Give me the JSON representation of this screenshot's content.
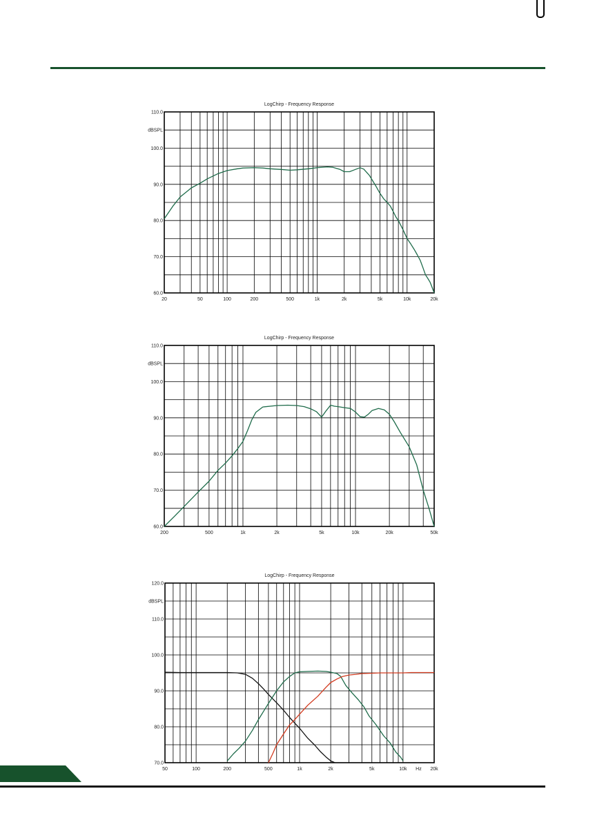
{
  "page": {
    "top_rule_color": "#17522c",
    "corner_tab_color": "#17522c"
  },
  "chart_data": [
    {
      "type": "line",
      "title": "LogChirp - Frequency Response",
      "ylabel": "dBSPL",
      "xscale": "log",
      "xlim": [
        20,
        20000
      ],
      "ylim": [
        60,
        110
      ],
      "grid": true,
      "xticks": [
        {
          "value": 20,
          "label": "20"
        },
        {
          "value": 50,
          "label": "50"
        },
        {
          "value": 100,
          "label": "100"
        },
        {
          "value": 200,
          "label": "200"
        },
        {
          "value": 500,
          "label": "500"
        },
        {
          "value": 1000,
          "label": "1k"
        },
        {
          "value": 2000,
          "label": "2k"
        },
        {
          "value": 5000,
          "label": "5k"
        },
        {
          "value": 10000,
          "label": "10k"
        },
        {
          "value": 20000,
          "label": "20k"
        }
      ],
      "yticks": [
        {
          "value": 60,
          "label": "60.0"
        },
        {
          "value": 70,
          "label": "70.0"
        },
        {
          "value": 80,
          "label": "80.0"
        },
        {
          "value": 90,
          "label": "90.0"
        },
        {
          "value": 100,
          "label": "100.0"
        },
        {
          "value": 110,
          "label": "110.0"
        }
      ],
      "series": [
        {
          "color": "#1e6b4a",
          "x": [
            20,
            25,
            30,
            40,
            50,
            60,
            70,
            80,
            100,
            130,
            150,
            200,
            250,
            300,
            400,
            500,
            600,
            800,
            1000,
            1300,
            1500,
            1800,
            2000,
            2300,
            2600,
            3000,
            3300,
            3800,
            4500,
            5000,
            5500,
            6000,
            6500,
            7000,
            7500,
            8000,
            9000,
            10000,
            11000,
            12000,
            13000,
            14000,
            15000,
            16000,
            17000,
            18000,
            19000,
            20000
          ],
          "y": [
            80.5,
            84,
            86.5,
            89,
            90.3,
            91.5,
            92.3,
            93,
            93.8,
            94.3,
            94.5,
            94.6,
            94.5,
            94.3,
            94.1,
            93.9,
            94,
            94.3,
            94.6,
            94.8,
            94.7,
            94.1,
            93.5,
            93.5,
            94,
            94.6,
            94.2,
            92.5,
            89.5,
            87.5,
            86,
            85,
            84,
            82.5,
            81,
            80,
            77.5,
            75,
            73.5,
            72,
            70.5,
            69,
            67,
            65,
            64,
            63,
            61.5,
            60
          ]
        }
      ]
    },
    {
      "type": "line",
      "title": "LogChirp - Frequency Response",
      "ylabel": "dBSPL",
      "xscale": "log",
      "xlim": [
        200,
        50000
      ],
      "ylim": [
        60,
        110
      ],
      "grid": true,
      "xticks": [
        {
          "value": 200,
          "label": "200"
        },
        {
          "value": 500,
          "label": "500"
        },
        {
          "value": 1000,
          "label": "1k"
        },
        {
          "value": 2000,
          "label": "2k"
        },
        {
          "value": 5000,
          "label": "5k"
        },
        {
          "value": 10000,
          "label": "10k"
        },
        {
          "value": 20000,
          "label": "20k"
        },
        {
          "value": 50000,
          "label": "50k"
        }
      ],
      "yticks": [
        {
          "value": 60,
          "label": "60.0"
        },
        {
          "value": 70,
          "label": "70.0"
        },
        {
          "value": 80,
          "label": "80.0"
        },
        {
          "value": 90,
          "label": "90.0"
        },
        {
          "value": 100,
          "label": "100.0"
        },
        {
          "value": 110,
          "label": "110.0"
        }
      ],
      "series": [
        {
          "color": "#1e6b4a",
          "x": [
            200,
            250,
            300,
            400,
            500,
            600,
            700,
            800,
            900,
            1000,
            1100,
            1200,
            1300,
            1500,
            2000,
            2500,
            3000,
            3500,
            4000,
            4500,
            5000,
            5500,
            6000,
            6500,
            7000,
            8000,
            9000,
            10000,
            11000,
            12000,
            13000,
            14000,
            16000,
            18000,
            20000,
            22000,
            25000,
            30000,
            35000,
            40000,
            45000,
            50000
          ],
          "y": [
            60,
            63,
            65.5,
            69.5,
            72.5,
            75.5,
            77.5,
            79.5,
            81.5,
            83.5,
            86.5,
            89.5,
            91.5,
            93,
            93.4,
            93.5,
            93.4,
            93.1,
            92.5,
            91.7,
            90.2,
            92,
            93.5,
            93.2,
            93.1,
            92.8,
            92.6,
            91.6,
            90.3,
            90.2,
            91,
            92,
            92.6,
            92.2,
            91,
            89,
            86,
            82,
            77,
            70,
            65,
            60
          ]
        }
      ]
    },
    {
      "type": "line",
      "title": "LogChirp - Frequency Response",
      "ylabel": "dBSPL",
      "xscale": "log",
      "xlim": [
        50,
        20000
      ],
      "ylim": [
        70,
        120
      ],
      "grid": true,
      "x_unit_label": "Hz",
      "xticks": [
        {
          "value": 50,
          "label": "50"
        },
        {
          "value": 100,
          "label": "100"
        },
        {
          "value": 200,
          "label": "200"
        },
        {
          "value": 500,
          "label": "500"
        },
        {
          "value": 1000,
          "label": "1k"
        },
        {
          "value": 2000,
          "label": "2k"
        },
        {
          "value": 5000,
          "label": "5k"
        },
        {
          "value": 10000,
          "label": "10k"
        },
        {
          "value": 20000,
          "label": "20k"
        }
      ],
      "yticks": [
        {
          "value": 70,
          "label": "70.0"
        },
        {
          "value": 80,
          "label": "80.0"
        },
        {
          "value": 90,
          "label": "90.0"
        },
        {
          "value": 100,
          "label": "100.0"
        },
        {
          "value": 110,
          "label": "110.0"
        },
        {
          "value": 120,
          "label": "120.0"
        }
      ],
      "series": [
        {
          "color": "#111111",
          "x": [
            50,
            70,
            100,
            150,
            200,
            250,
            300,
            350,
            400,
            450,
            500,
            600,
            700,
            800,
            900,
            1000,
            1200,
            1400,
            1600,
            1800,
            2000,
            2200
          ],
          "y": [
            95.2,
            95.1,
            95.1,
            95.1,
            95.1,
            95,
            94.6,
            93.5,
            92,
            90.5,
            89,
            86.7,
            84.6,
            82.6,
            81,
            79.6,
            76.8,
            74.9,
            73,
            71.6,
            70.5,
            70
          ]
        },
        {
          "color": "#1e6b4a",
          "x": [
            200,
            230,
            260,
            300,
            350,
            400,
            500,
            600,
            700,
            800,
            900,
            1000,
            1200,
            1500,
            1800,
            2000,
            2300,
            2500,
            2800,
            3200,
            3700,
            4200,
            4700,
            5500,
            6500,
            7500,
            8500,
            9500,
            10000
          ],
          "y": [
            70.5,
            72.5,
            74,
            76,
            79,
            82,
            86.5,
            90,
            92.5,
            94,
            95,
            95.3,
            95.4,
            95.5,
            95.4,
            95.2,
            94.8,
            94,
            91.5,
            89.5,
            87.5,
            85.5,
            83,
            80.5,
            77.5,
            75.5,
            73,
            71.5,
            70.5
          ]
        },
        {
          "color": "#d23a1e",
          "x": [
            500,
            550,
            600,
            700,
            800,
            900,
            1000,
            1200,
            1500,
            1800,
            2000,
            2300,
            2600,
            3000,
            3500,
            4000,
            5000,
            6000,
            8000,
            10000,
            12000,
            15000,
            20000
          ],
          "y": [
            70,
            72.5,
            75,
            78,
            80.5,
            82,
            83.5,
            86,
            88.5,
            91,
            92.3,
            93.3,
            94,
            94.4,
            94.6,
            94.8,
            94.9,
            95,
            95,
            95,
            95.1,
            95.1,
            95.1
          ]
        }
      ]
    }
  ]
}
